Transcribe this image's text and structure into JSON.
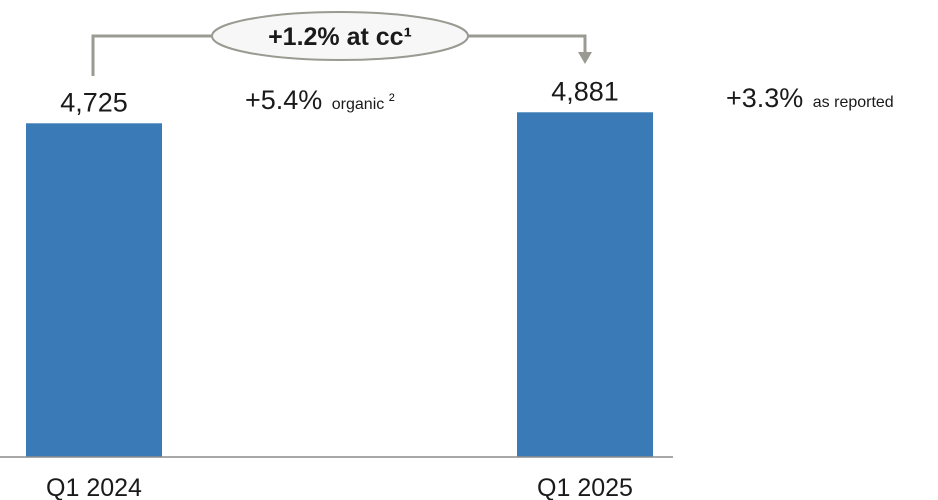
{
  "chart_data": {
    "type": "bar",
    "categories": [
      "Q1 2024",
      "Q1 2025"
    ],
    "values": [
      4725,
      4881
    ],
    "value_labels": [
      "4,725",
      "4,881"
    ],
    "ylim": [
      0,
      4970
    ],
    "bar_color": "#3a7ab7",
    "callout": {
      "label": "+1.2% at cc¹",
      "border_color": "#9a9a93",
      "fill_color": "#f7f7f7"
    },
    "annotations": {
      "organic": {
        "value": "+5.4%",
        "suffix": "organic",
        "superscript": "2"
      },
      "reported": {
        "value": "+3.3%",
        "suffix": "as reported"
      }
    }
  }
}
